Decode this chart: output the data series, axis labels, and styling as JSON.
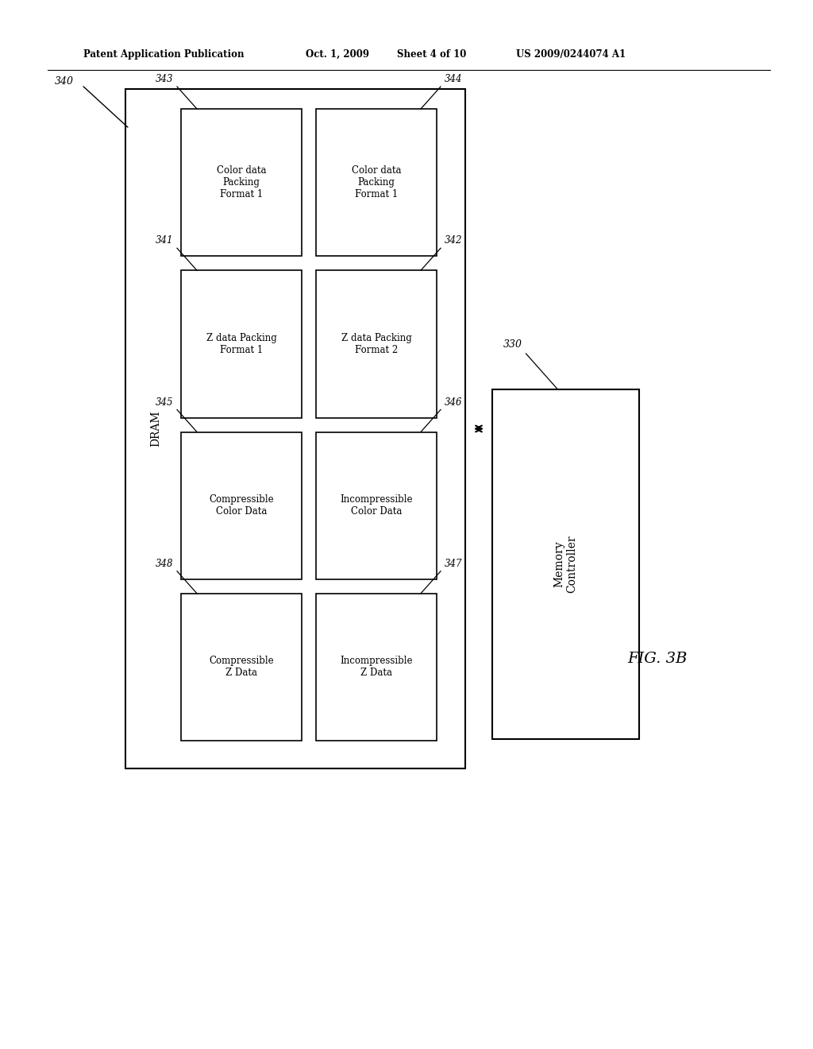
{
  "header_left": "Patent Application Publication",
  "header_mid": "Oct. 1, 2009",
  "header_mid2": "Sheet 4 of 10",
  "header_right": "US 2009/0244074 A1",
  "fig_label": "FIG. 3B",
  "dram_label": "DRAM",
  "bg_color": "#ffffff",
  "box_edgecolor": "#000000",
  "row_labels_left": [
    "Color data\nPacking\nFormat 1",
    "Z data Packing\nFormat 1",
    "Compressible\nColor Data",
    "Compressible\nZ Data"
  ],
  "row_labels_right": [
    "Color data\nPacking\nFormat 1",
    "Z data Packing\nFormat 2",
    "Incompressible\nColor Data",
    "Incompressible\nZ Data"
  ],
  "row_tags_left": [
    "343",
    "341",
    "345",
    "348"
  ],
  "row_tags_right": [
    "344",
    "342",
    "346",
    "347"
  ],
  "dram_tag": "340",
  "mc_tag": "330",
  "mc_label": "Memory\nController"
}
